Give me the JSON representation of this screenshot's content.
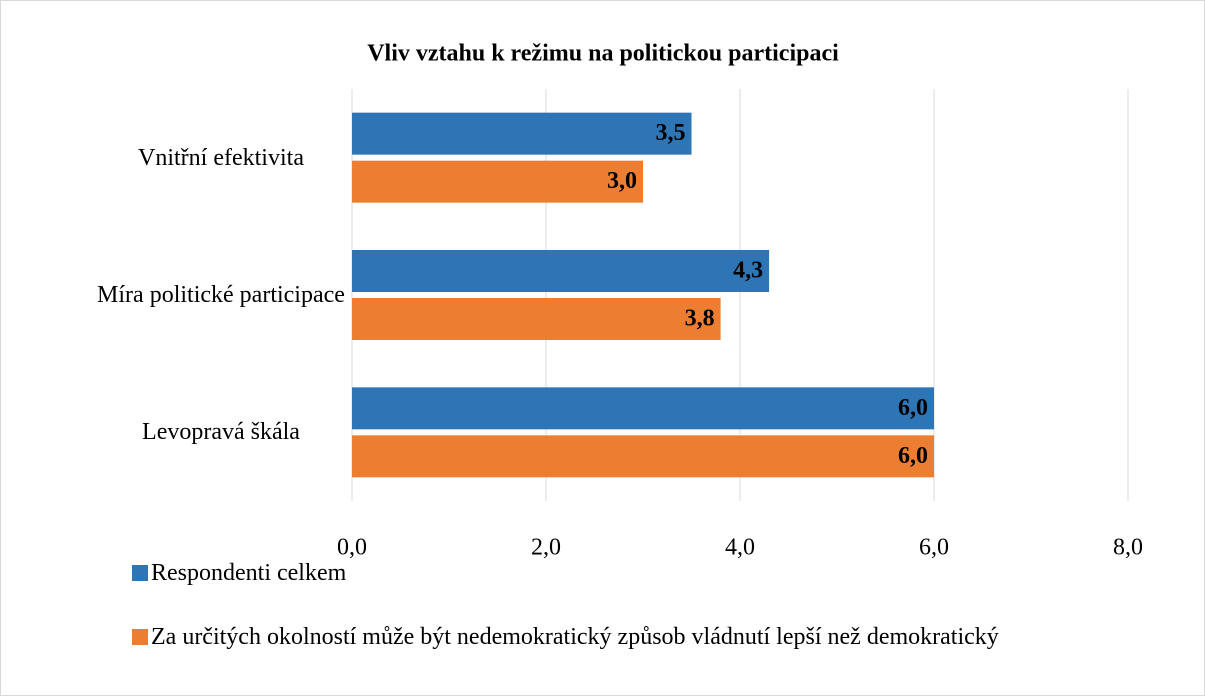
{
  "chart_data": {
    "type": "barh",
    "title": "Vliv vztahu k režimu na politickou participaci",
    "categories": [
      "Vnitřní efektivita",
      "Míra politické participace",
      "Levopravá škála"
    ],
    "series": [
      {
        "name": "Respondenti celkem",
        "color": "#2e75b6",
        "values": [
          3.5,
          4.3,
          6.0
        ],
        "value_labels": [
          "3,5",
          "4,3",
          "6,0"
        ]
      },
      {
        "name": "Za určitých okolností může být nedemokratický způsob vládnutí lepší než demokratický",
        "color": "#ed7d31",
        "values": [
          3.0,
          3.8,
          6.0
        ],
        "value_labels": [
          "3,0",
          "3,8",
          "6,0"
        ]
      }
    ],
    "xlim": [
      0,
      8
    ],
    "xticks": [
      {
        "value": 0,
        "label": "0,0"
      },
      {
        "value": 2,
        "label": "2,0"
      },
      {
        "value": 4,
        "label": "4,0"
      },
      {
        "value": 6,
        "label": "6,0"
      },
      {
        "value": 8,
        "label": "8,0"
      }
    ],
    "grid": true
  }
}
